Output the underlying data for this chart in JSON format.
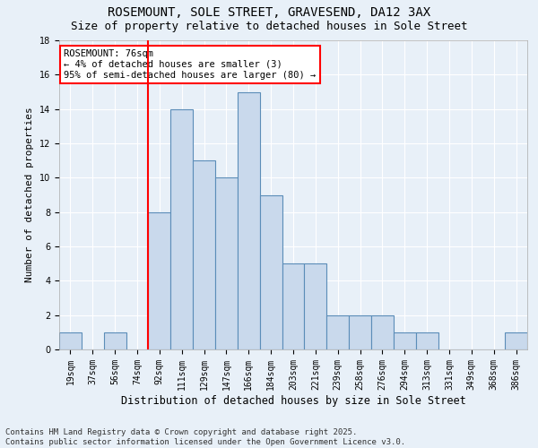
{
  "title": "ROSEMOUNT, SOLE STREET, GRAVESEND, DA12 3AX",
  "subtitle": "Size of property relative to detached houses in Sole Street",
  "xlabel": "Distribution of detached houses by size in Sole Street",
  "ylabel": "Number of detached properties",
  "categories": [
    "19sqm",
    "37sqm",
    "56sqm",
    "74sqm",
    "92sqm",
    "111sqm",
    "129sqm",
    "147sqm",
    "166sqm",
    "184sqm",
    "203sqm",
    "221sqm",
    "239sqm",
    "258sqm",
    "276sqm",
    "294sqm",
    "313sqm",
    "331sqm",
    "349sqm",
    "368sqm",
    "386sqm"
  ],
  "values": [
    1,
    0,
    1,
    0,
    8,
    14,
    11,
    10,
    15,
    9,
    5,
    5,
    2,
    2,
    2,
    1,
    1,
    0,
    0,
    0,
    1
  ],
  "bar_color": "#c9d9ec",
  "bar_edge_color": "#5b8db8",
  "red_line_x": 3.5,
  "annotation_text": "ROSEMOUNT: 76sqm\n← 4% of detached houses are smaller (3)\n95% of semi-detached houses are larger (80) →",
  "annotation_box_color": "white",
  "annotation_box_edge_color": "red",
  "background_color": "#e8f0f8",
  "grid_color": "white",
  "ylim": [
    0,
    18
  ],
  "yticks": [
    0,
    2,
    4,
    6,
    8,
    10,
    12,
    14,
    16,
    18
  ],
  "footer": "Contains HM Land Registry data © Crown copyright and database right 2025.\nContains public sector information licensed under the Open Government Licence v3.0.",
  "title_fontsize": 10,
  "subtitle_fontsize": 9,
  "xlabel_fontsize": 8.5,
  "ylabel_fontsize": 8,
  "tick_fontsize": 7,
  "footer_fontsize": 6.5,
  "annotation_fontsize": 7.5
}
